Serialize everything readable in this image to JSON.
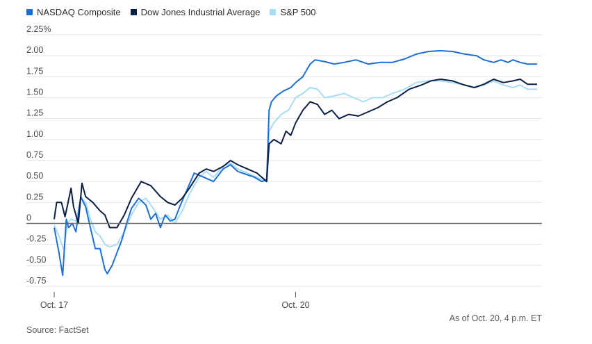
{
  "chart_data": {
    "type": "line",
    "title": "",
    "xlabel": "",
    "ylabel": "",
    "ylim": [
      -0.75,
      2.25
    ],
    "y_ticks": [
      {
        "value": 2.25,
        "label": "2.25%"
      },
      {
        "value": 2.0,
        "label": "2.00"
      },
      {
        "value": 1.75,
        "label": "1.75"
      },
      {
        "value": 1.5,
        "label": "1.50"
      },
      {
        "value": 1.25,
        "label": "1.25"
      },
      {
        "value": 1.0,
        "label": "1.00"
      },
      {
        "value": 0.75,
        "label": "0.75"
      },
      {
        "value": 0.5,
        "label": "0.50"
      },
      {
        "value": 0.25,
        "label": "0.25"
      },
      {
        "value": 0,
        "label": "0"
      },
      {
        "value": -0.25,
        "label": "-0.25"
      },
      {
        "value": -0.5,
        "label": "-0.50"
      },
      {
        "value": -0.75,
        "label": "-0.75"
      }
    ],
    "x_ticks": [
      {
        "value": 0,
        "label": "Oct. 17"
      },
      {
        "value": 1,
        "label": "Oct. 20"
      }
    ],
    "x_range": [
      0,
      2
    ],
    "grid": true,
    "legend_position": "top-left",
    "series": [
      {
        "name": "NASDAQ Composite",
        "color": "#1a6fd4",
        "points": [
          [
            0.0,
            -0.05
          ],
          [
            0.02,
            -0.35
          ],
          [
            0.035,
            -0.62
          ],
          [
            0.05,
            0.05
          ],
          [
            0.06,
            -0.05
          ],
          [
            0.075,
            0.0
          ],
          [
            0.09,
            -0.1
          ],
          [
            0.11,
            0.32
          ],
          [
            0.13,
            0.2
          ],
          [
            0.15,
            -0.05
          ],
          [
            0.17,
            -0.3
          ],
          [
            0.19,
            -0.3
          ],
          [
            0.21,
            -0.55
          ],
          [
            0.22,
            -0.6
          ],
          [
            0.24,
            -0.5
          ],
          [
            0.26,
            -0.35
          ],
          [
            0.28,
            -0.2
          ],
          [
            0.3,
            0.0
          ],
          [
            0.32,
            0.18
          ],
          [
            0.35,
            0.3
          ],
          [
            0.38,
            0.22
          ],
          [
            0.4,
            0.05
          ],
          [
            0.42,
            0.12
          ],
          [
            0.44,
            -0.05
          ],
          [
            0.46,
            0.1
          ],
          [
            0.48,
            0.03
          ],
          [
            0.5,
            0.05
          ],
          [
            0.52,
            0.2
          ],
          [
            0.55,
            0.4
          ],
          [
            0.58,
            0.6
          ],
          [
            0.62,
            0.55
          ],
          [
            0.66,
            0.5
          ],
          [
            0.7,
            0.65
          ],
          [
            0.73,
            0.7
          ],
          [
            0.76,
            0.62
          ],
          [
            0.8,
            0.58
          ],
          [
            0.83,
            0.55
          ],
          [
            0.86,
            0.5
          ],
          [
            0.88,
            0.52
          ],
          [
            0.89,
            1.35
          ],
          [
            0.9,
            1.45
          ],
          [
            0.92,
            1.52
          ],
          [
            0.95,
            1.58
          ],
          [
            0.98,
            1.62
          ],
          [
            1.0,
            1.68
          ],
          [
            1.03,
            1.75
          ],
          [
            1.06,
            1.9
          ],
          [
            1.08,
            1.95
          ],
          [
            1.12,
            1.93
          ],
          [
            1.16,
            1.9
          ],
          [
            1.2,
            1.92
          ],
          [
            1.25,
            1.95
          ],
          [
            1.3,
            1.9
          ],
          [
            1.35,
            1.92
          ],
          [
            1.4,
            1.92
          ],
          [
            1.45,
            1.96
          ],
          [
            1.5,
            2.02
          ],
          [
            1.55,
            2.05
          ],
          [
            1.6,
            2.06
          ],
          [
            1.65,
            2.05
          ],
          [
            1.7,
            2.02
          ],
          [
            1.75,
            2.0
          ],
          [
            1.78,
            1.95
          ],
          [
            1.82,
            1.92
          ],
          [
            1.85,
            1.95
          ],
          [
            1.88,
            1.92
          ],
          [
            1.9,
            1.95
          ],
          [
            1.93,
            1.92
          ],
          [
            1.96,
            1.9
          ],
          [
            2.0,
            1.9
          ]
        ]
      },
      {
        "name": "Dow Jones Industrial Average",
        "color": "#0a1f44",
        "points": [
          [
            0.0,
            0.05
          ],
          [
            0.01,
            0.25
          ],
          [
            0.03,
            0.25
          ],
          [
            0.045,
            0.08
          ],
          [
            0.07,
            0.42
          ],
          [
            0.08,
            0.2
          ],
          [
            0.1,
            0.0
          ],
          [
            0.115,
            0.48
          ],
          [
            0.13,
            0.32
          ],
          [
            0.16,
            0.25
          ],
          [
            0.19,
            0.15
          ],
          [
            0.21,
            0.1
          ],
          [
            0.23,
            -0.05
          ],
          [
            0.26,
            -0.05
          ],
          [
            0.29,
            0.1
          ],
          [
            0.32,
            0.3
          ],
          [
            0.36,
            0.5
          ],
          [
            0.4,
            0.45
          ],
          [
            0.44,
            0.32
          ],
          [
            0.47,
            0.25
          ],
          [
            0.5,
            0.22
          ],
          [
            0.53,
            0.3
          ],
          [
            0.56,
            0.42
          ],
          [
            0.6,
            0.6
          ],
          [
            0.63,
            0.65
          ],
          [
            0.66,
            0.62
          ],
          [
            0.7,
            0.68
          ],
          [
            0.73,
            0.75
          ],
          [
            0.76,
            0.7
          ],
          [
            0.8,
            0.65
          ],
          [
            0.84,
            0.6
          ],
          [
            0.88,
            0.5
          ],
          [
            0.89,
            0.95
          ],
          [
            0.91,
            1.0
          ],
          [
            0.94,
            0.95
          ],
          [
            0.96,
            1.1
          ],
          [
            0.98,
            1.05
          ],
          [
            1.0,
            1.2
          ],
          [
            1.03,
            1.35
          ],
          [
            1.06,
            1.45
          ],
          [
            1.09,
            1.42
          ],
          [
            1.12,
            1.3
          ],
          [
            1.15,
            1.35
          ],
          [
            1.18,
            1.25
          ],
          [
            1.22,
            1.3
          ],
          [
            1.26,
            1.28
          ],
          [
            1.3,
            1.33
          ],
          [
            1.34,
            1.38
          ],
          [
            1.38,
            1.45
          ],
          [
            1.42,
            1.5
          ],
          [
            1.47,
            1.6
          ],
          [
            1.52,
            1.65
          ],
          [
            1.56,
            1.7
          ],
          [
            1.6,
            1.72
          ],
          [
            1.65,
            1.7
          ],
          [
            1.7,
            1.65
          ],
          [
            1.74,
            1.62
          ],
          [
            1.78,
            1.66
          ],
          [
            1.82,
            1.72
          ],
          [
            1.86,
            1.68
          ],
          [
            1.9,
            1.7
          ],
          [
            1.93,
            1.72
          ],
          [
            1.96,
            1.66
          ],
          [
            2.0,
            1.66
          ]
        ]
      },
      {
        "name": "S&P 500",
        "color": "#a8dcf5",
        "points": [
          [
            0.0,
            -0.02
          ],
          [
            0.02,
            -0.15
          ],
          [
            0.04,
            -0.32
          ],
          [
            0.055,
            0.0
          ],
          [
            0.07,
            0.05
          ],
          [
            0.09,
            0.03
          ],
          [
            0.11,
            0.3
          ],
          [
            0.13,
            0.25
          ],
          [
            0.15,
            0.05
          ],
          [
            0.17,
            -0.1
          ],
          [
            0.19,
            -0.15
          ],
          [
            0.21,
            -0.25
          ],
          [
            0.23,
            -0.28
          ],
          [
            0.26,
            -0.25
          ],
          [
            0.29,
            -0.1
          ],
          [
            0.32,
            0.1
          ],
          [
            0.35,
            0.25
          ],
          [
            0.38,
            0.3
          ],
          [
            0.41,
            0.18
          ],
          [
            0.44,
            0.05
          ],
          [
            0.47,
            0.1
          ],
          [
            0.5,
            0.0
          ],
          [
            0.53,
            0.15
          ],
          [
            0.56,
            0.35
          ],
          [
            0.6,
            0.55
          ],
          [
            0.63,
            0.62
          ],
          [
            0.66,
            0.55
          ],
          [
            0.7,
            0.68
          ],
          [
            0.73,
            0.72
          ],
          [
            0.76,
            0.65
          ],
          [
            0.8,
            0.6
          ],
          [
            0.84,
            0.55
          ],
          [
            0.88,
            0.5
          ],
          [
            0.89,
            1.1
          ],
          [
            0.91,
            1.2
          ],
          [
            0.94,
            1.3
          ],
          [
            0.97,
            1.35
          ],
          [
            1.0,
            1.5
          ],
          [
            1.03,
            1.55
          ],
          [
            1.06,
            1.62
          ],
          [
            1.09,
            1.6
          ],
          [
            1.12,
            1.5
          ],
          [
            1.16,
            1.52
          ],
          [
            1.2,
            1.55
          ],
          [
            1.24,
            1.5
          ],
          [
            1.28,
            1.45
          ],
          [
            1.32,
            1.5
          ],
          [
            1.36,
            1.5
          ],
          [
            1.4,
            1.55
          ],
          [
            1.45,
            1.6
          ],
          [
            1.5,
            1.68
          ],
          [
            1.55,
            1.7
          ],
          [
            1.6,
            1.7
          ],
          [
            1.65,
            1.68
          ],
          [
            1.7,
            1.65
          ],
          [
            1.74,
            1.62
          ],
          [
            1.78,
            1.65
          ],
          [
            1.82,
            1.7
          ],
          [
            1.86,
            1.65
          ],
          [
            1.9,
            1.62
          ],
          [
            1.93,
            1.65
          ],
          [
            1.96,
            1.6
          ],
          [
            2.0,
            1.6
          ]
        ]
      }
    ]
  },
  "notes": {
    "as_of": "As of Oct. 20, 4 p.m. ET",
    "source": "Source: FactSet"
  }
}
